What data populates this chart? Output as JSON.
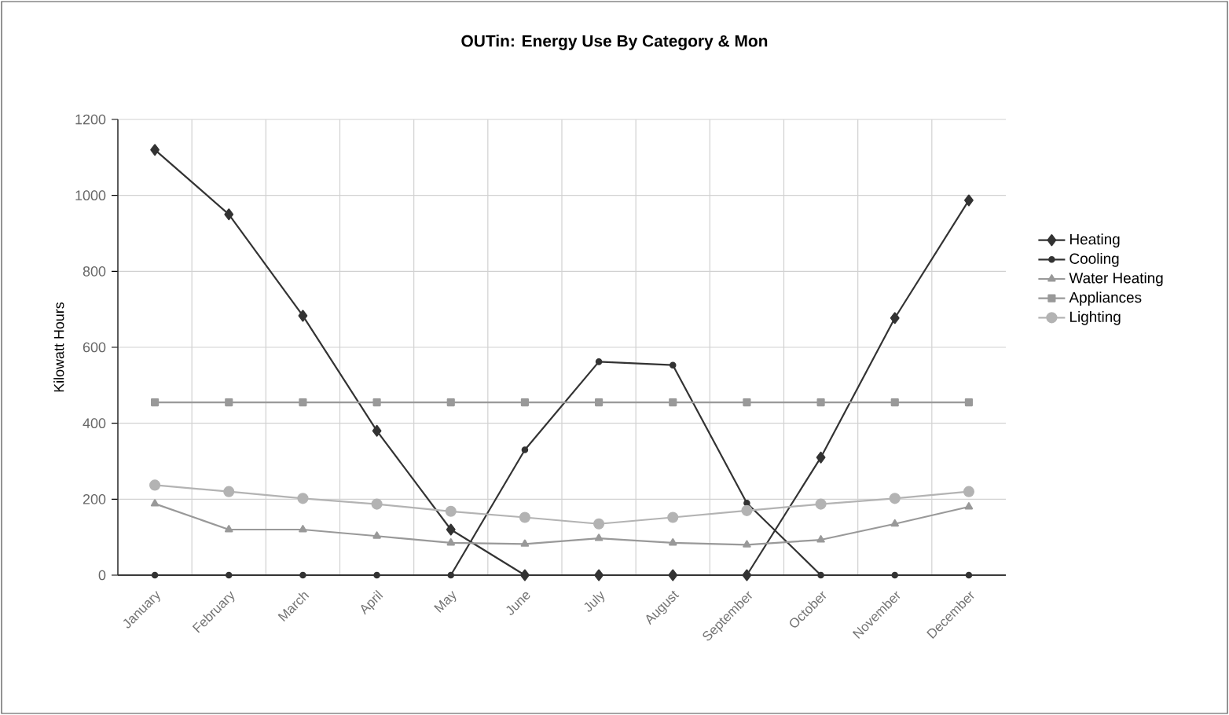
{
  "chart_data": {
    "type": "line",
    "title": "OUTin: Energy Use By Category & Mon",
    "ylabel": "Kilowatt Hours",
    "categories": [
      "January",
      "February",
      "March",
      "April",
      "May",
      "June",
      "July",
      "August",
      "September",
      "October",
      "November",
      "December"
    ],
    "series": [
      {
        "name": "Heating",
        "color": "#333333",
        "marker": "diamond",
        "values": [
          1120,
          950,
          683,
          380,
          120,
          0,
          0,
          0,
          0,
          310,
          677,
          987
        ]
      },
      {
        "name": "Cooling",
        "color": "#333333",
        "marker": "circle",
        "values": [
          0,
          0,
          0,
          0,
          0,
          330,
          562,
          553,
          190,
          0,
          0,
          0
        ]
      },
      {
        "name": "Water Heating",
        "color": "#999999",
        "marker": "triangle",
        "values": [
          188,
          120,
          120,
          103,
          85,
          82,
          97,
          85,
          80,
          93,
          135,
          180
        ]
      },
      {
        "name": "Appliances",
        "color": "#999999",
        "marker": "square",
        "values": [
          455,
          455,
          455,
          455,
          455,
          455,
          455,
          455,
          455,
          455,
          455,
          455
        ]
      },
      {
        "name": "Lighting",
        "color": "#b3b3b3",
        "marker": "circle",
        "values": [
          237,
          220,
          202,
          187,
          168,
          152,
          135,
          152,
          170,
          187,
          202,
          220
        ]
      }
    ],
    "ylim": [
      0,
      1200
    ],
    "yticks": [
      0,
      200,
      400,
      600,
      800,
      1000,
      1200
    ],
    "grid": true,
    "legend": "right"
  }
}
